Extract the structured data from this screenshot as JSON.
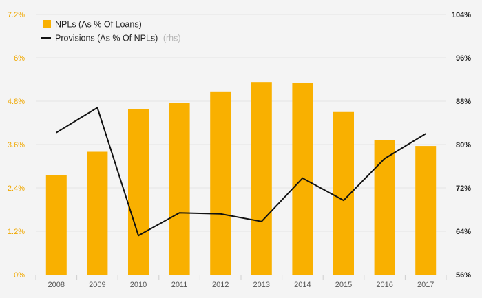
{
  "chart_data": {
    "type": "bar+line",
    "categories": [
      "2008",
      "2009",
      "2010",
      "2011",
      "2012",
      "2013",
      "2014",
      "2015",
      "2016",
      "2017"
    ],
    "series": [
      {
        "name": "NPLs (As % Of Loans)",
        "type": "bar",
        "axis": "left",
        "color": "#f9b000",
        "values": [
          2.75,
          3.4,
          4.58,
          4.75,
          5.07,
          5.33,
          5.3,
          4.5,
          3.72,
          3.56
        ]
      },
      {
        "name": "Provisions (As % Of NPLs)",
        "note": "(rhs)",
        "type": "line",
        "axis": "right",
        "color": "#111111",
        "values": [
          82.2,
          86.8,
          63.2,
          67.4,
          67.2,
          65.8,
          73.8,
          69.7,
          77.4,
          82.0
        ]
      }
    ],
    "y_left": {
      "ylim": [
        0,
        7.2
      ],
      "ticks": [
        0,
        1.2,
        2.4,
        3.6,
        4.8,
        6,
        7.2
      ],
      "tick_labels": [
        "0%",
        "1.2%",
        "2.4%",
        "3.6%",
        "4.8%",
        "6%",
        "7.2%"
      ],
      "tick_color": "#f0a800"
    },
    "y_right": {
      "ylim": [
        56,
        104
      ],
      "ticks": [
        56,
        64,
        72,
        80,
        88,
        96,
        104
      ],
      "tick_labels": [
        "56%",
        "64%",
        "72%",
        "80%",
        "88%",
        "96%",
        "104%"
      ]
    },
    "grid": true,
    "legend_position": "top-left"
  }
}
